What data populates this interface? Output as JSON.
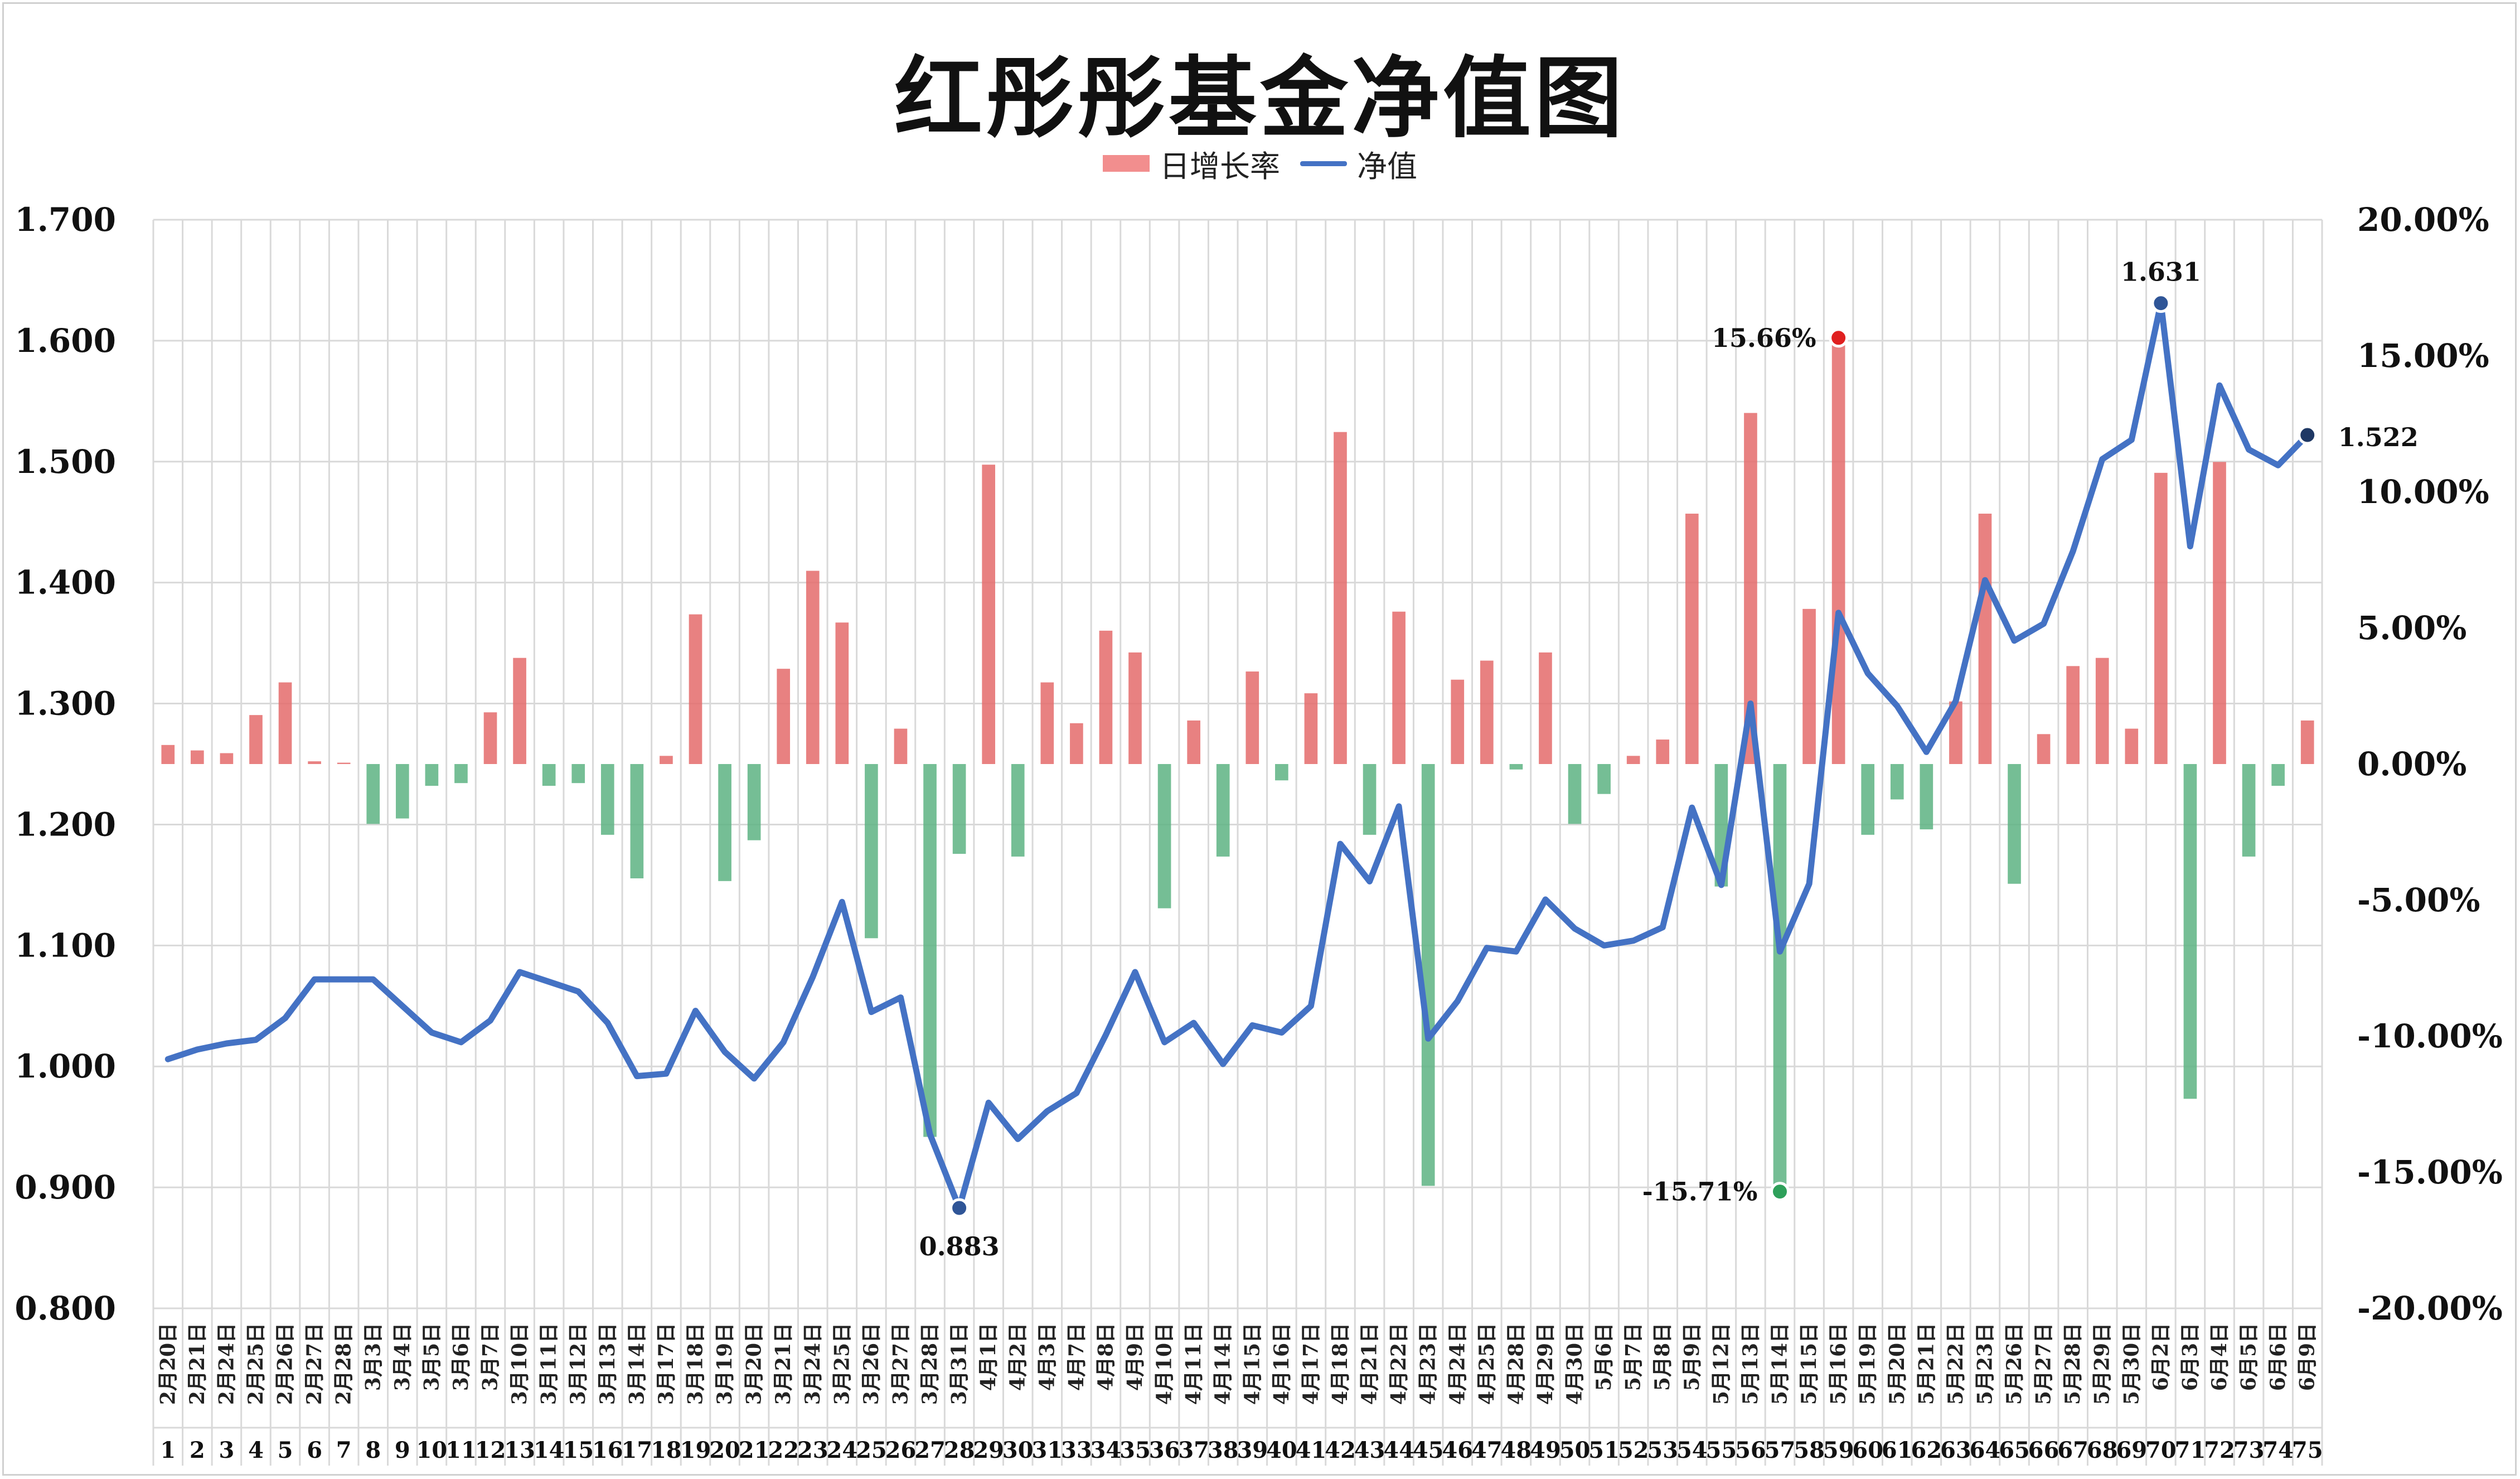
{
  "title": "红彤彤基金净值图",
  "legend": [
    {
      "label": "日增长率",
      "color": "#f28e8e",
      "type": "bar"
    },
    {
      "label": "净值",
      "color": "#4472c4",
      "type": "line"
    }
  ],
  "colors": {
    "positive": "#e46b6b",
    "negative": "#5db383",
    "line": "#4472c4",
    "grid": "#d9d9d9"
  },
  "chart_data": {
    "type": "bar+line",
    "title": "红彤彤基金净值图",
    "left_axis": {
      "ylim": [
        0.8,
        1.7
      ],
      "ticks": [
        "0.800",
        "0.900",
        "1.000",
        "1.100",
        "1.200",
        "1.300",
        "1.400",
        "1.500",
        "1.600",
        "1.700"
      ]
    },
    "right_axis": {
      "ylim": [
        -20,
        20
      ],
      "ticks": [
        "-20.00%",
        "-15.00%",
        "-10.00%",
        "-5.00%",
        "0.00%",
        "5.00%",
        "10.00%",
        "15.00%",
        "20.00%"
      ]
    },
    "categories": [
      "2月20日",
      "2月21日",
      "2月24日",
      "2月25日",
      "2月26日",
      "2月27日",
      "2月28日",
      "3月3日",
      "3月4日",
      "3月5日",
      "3月6日",
      "3月7日",
      "3月10日",
      "3月11日",
      "3月12日",
      "3月13日",
      "3月14日",
      "3月17日",
      "3月18日",
      "3月19日",
      "3月20日",
      "3月21日",
      "3月24日",
      "3月25日",
      "3月26日",
      "3月27日",
      "3月28日",
      "3月31日",
      "4月1日",
      "4月2日",
      "4月3日",
      "4月7日",
      "4月8日",
      "4月9日",
      "4月10日",
      "4月11日",
      "4月14日",
      "4月15日",
      "4月16日",
      "4月17日",
      "4月18日",
      "4月21日",
      "4月22日",
      "4月23日",
      "4月24日",
      "4月25日",
      "4月28日",
      "4月29日",
      "4月30日",
      "5月6日",
      "5月7日",
      "5月8日",
      "5月9日",
      "5月12日",
      "5月13日",
      "5月14日",
      "5月15日",
      "5月16日",
      "5月19日",
      "5月20日",
      "5月21日",
      "5月22日",
      "5月23日",
      "5月26日",
      "5月27日",
      "5月28日",
      "5月29日",
      "5月30日",
      "6月2日",
      "6月3日",
      "6月4日",
      "6月5日",
      "6月6日",
      "6月9日"
    ],
    "index_labels": [
      "1",
      "2",
      "3",
      "4",
      "5",
      "6",
      "7",
      "8",
      "9",
      "10",
      "11",
      "12",
      "13",
      "14",
      "15",
      "16",
      "17",
      "18",
      "19",
      "20",
      "21",
      "22",
      "23",
      "24",
      "25",
      "26",
      "27",
      "28",
      "29",
      "30",
      "31",
      "33",
      "34",
      "35",
      "36",
      "37",
      "38",
      "39",
      "40",
      "41",
      "42",
      "43",
      "44",
      "45",
      "46",
      "47",
      "48",
      "49",
      "50",
      "51",
      "52",
      "53",
      "54",
      "55",
      "56",
      "57",
      "58",
      "59",
      "60",
      "61",
      "62",
      "63",
      "64",
      "65",
      "66",
      "67",
      "68",
      "69",
      "70",
      "71",
      "72",
      "73",
      "74",
      "75"
    ],
    "series": [
      {
        "name": "日增长率",
        "axis": "right",
        "type": "bar",
        "values": [
          0.7,
          0.5,
          0.4,
          1.8,
          3.0,
          0.1,
          0.05,
          -2.2,
          -2.0,
          -0.8,
          -0.7,
          1.9,
          3.9,
          -0.8,
          -0.7,
          -2.6,
          -4.2,
          0.3,
          5.5,
          -4.3,
          -2.8,
          3.5,
          7.1,
          5.2,
          -6.4,
          1.3,
          -13.7,
          -3.3,
          11.0,
          -3.4,
          3.0,
          1.5,
          4.9,
          4.1,
          -5.3,
          1.6,
          -3.4,
          3.4,
          -0.6,
          2.6,
          12.2,
          -2.6,
          5.6,
          -15.5,
          3.1,
          3.8,
          -0.2,
          4.1,
          -2.2,
          -1.1,
          0.3,
          0.9,
          9.2,
          -4.5,
          12.9,
          -15.71,
          5.7,
          15.66,
          -2.6,
          -1.3,
          -2.4,
          2.3,
          9.2,
          -4.4,
          1.1,
          3.6,
          3.9,
          1.3,
          10.7,
          -12.3,
          11.1,
          -3.4,
          -0.8,
          1.6
        ]
      },
      {
        "name": "净值",
        "axis": "left",
        "type": "line",
        "values": [
          1.006,
          1.014,
          1.019,
          1.022,
          1.04,
          1.072,
          1.072,
          1.072,
          1.05,
          1.028,
          1.02,
          1.038,
          1.078,
          1.07,
          1.062,
          1.036,
          0.992,
          0.994,
          1.046,
          1.012,
          0.99,
          1.02,
          1.074,
          1.136,
          1.045,
          1.057,
          0.944,
          0.883,
          0.97,
          0.94,
          0.963,
          0.978,
          1.026,
          1.078,
          1.02,
          1.036,
          1.002,
          1.034,
          1.028,
          1.05,
          1.184,
          1.153,
          1.215,
          1.023,
          1.054,
          1.098,
          1.095,
          1.138,
          1.114,
          1.1,
          1.104,
          1.115,
          1.214,
          1.15,
          1.3,
          1.095,
          1.151,
          1.375,
          1.325,
          1.298,
          1.26,
          1.302,
          1.402,
          1.352,
          1.366,
          1.426,
          1.502,
          1.518,
          1.631,
          1.43,
          1.563,
          1.51,
          1.497,
          1.522
        ]
      }
    ],
    "annotations": [
      {
        "label": "1.631",
        "index": 68,
        "series": "净值"
      },
      {
        "label": "0.883",
        "index": 27,
        "series": "净值"
      },
      {
        "label": "1.522",
        "index": 73,
        "series": "净值"
      },
      {
        "label": "15.66%",
        "index": 57,
        "series": "日增长率"
      },
      {
        "label": "-15.71%",
        "index": 55,
        "series": "日增长率"
      }
    ],
    "grid": true
  }
}
